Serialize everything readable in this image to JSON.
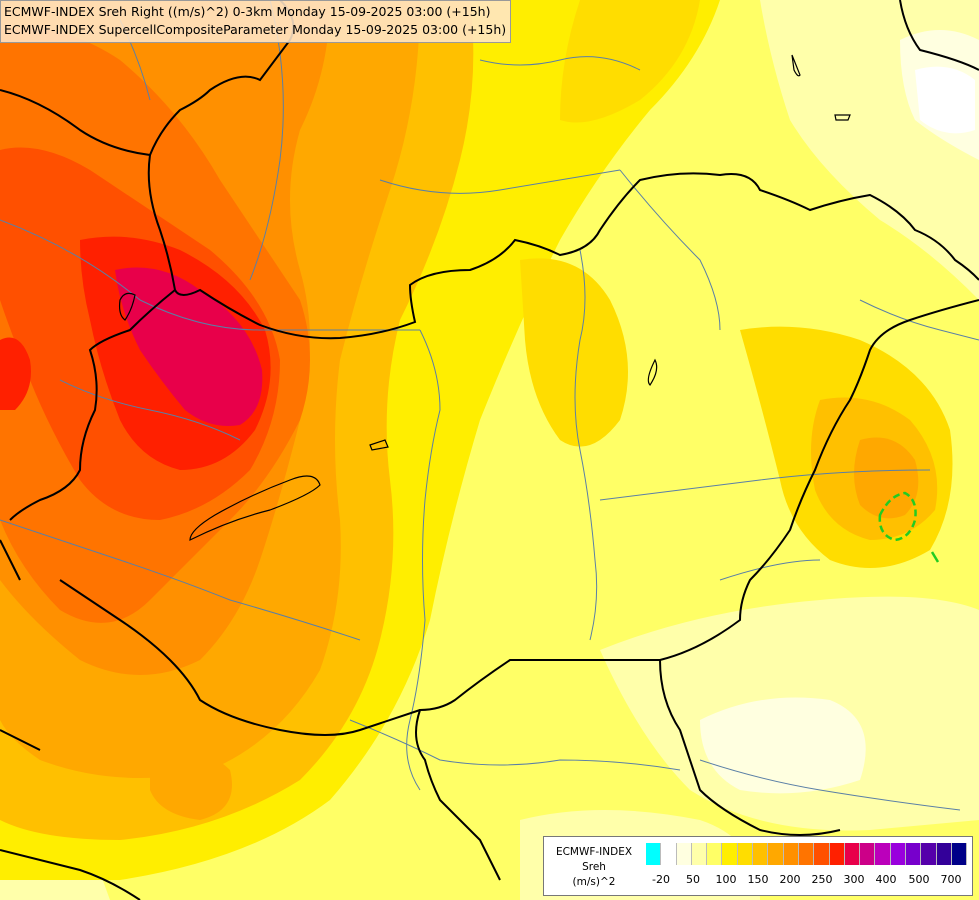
{
  "header": {
    "line1": "ECMWF-INDEX Sreh Right ((m/s)^2) 0-3km Monday 15-09-2025 03:00 (+15h)",
    "line2": "ECMWF-INDEX SupercellCompositeParameter Monday 15-09-2025 03:00 (+15h)"
  },
  "legend": {
    "title": "ECMWF-INDEX",
    "variable": "Sreh",
    "unit": "(m/s)^2",
    "colors": [
      "#00ffff",
      "#ffffff",
      "#ffffe0",
      "#ffffaa",
      "#ffff66",
      "#ffee00",
      "#ffdd00",
      "#ffc000",
      "#ffa800",
      "#ff9000",
      "#ff7400",
      "#ff5000",
      "#ff2000",
      "#e8004a",
      "#cc0088",
      "#bb00bb",
      "#9900dd",
      "#7700cc",
      "#5500aa",
      "#330099",
      "#000088"
    ],
    "tick_labels": [
      "-20",
      "50",
      "100",
      "150",
      "200",
      "250",
      "300",
      "400",
      "500",
      "700"
    ]
  },
  "colors": {
    "high_helicity": "#e8004a",
    "scp_contour": "#22cc22",
    "borders": "#000000",
    "rivers": "#5a7fa6"
  }
}
